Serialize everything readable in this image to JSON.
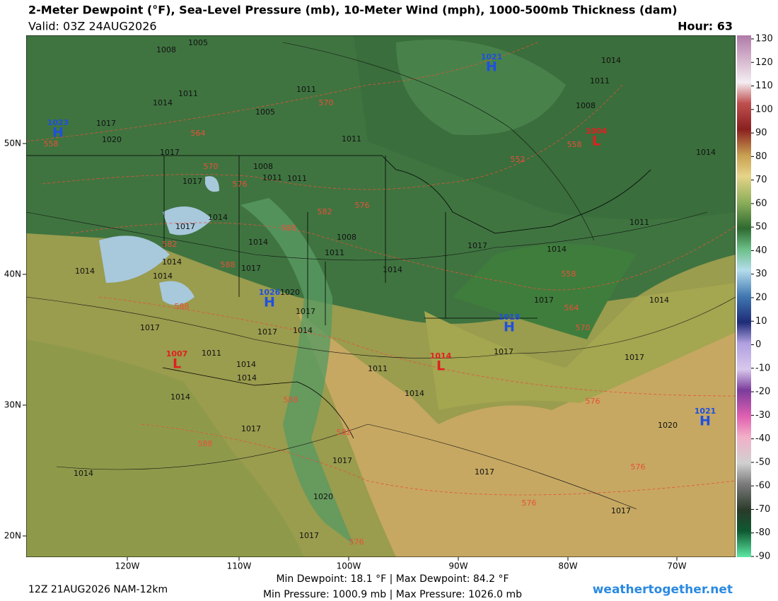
{
  "header": {
    "title": "2-Meter Dewpoint (°F), Sea-Level Pressure (mb), 10-Meter Wind (mph), 1000-500mb Thickness (dam)",
    "valid": "Valid: 03Z 24AUG2026",
    "hour": "Hour: 63"
  },
  "colorbar": {
    "ticks": [
      130,
      120,
      110,
      100,
      90,
      80,
      70,
      60,
      50,
      40,
      30,
      20,
      10,
      0,
      -10,
      -20,
      -30,
      -40,
      -50,
      -60,
      -70,
      -80,
      -90
    ]
  },
  "axes": {
    "lat_labels": [
      "50N",
      "40N",
      "30N",
      "20N"
    ],
    "lon_labels": [
      "120W",
      "110W",
      "100W",
      "90W",
      "80W",
      "70W"
    ]
  },
  "isobar_labels": [
    1008,
    1005,
    1011,
    1014,
    1017,
    1020,
    1017,
    1005,
    1011,
    1011,
    1008,
    1011,
    1011,
    1017,
    1017,
    1014,
    1008,
    1014,
    1011,
    1014,
    1017,
    1014,
    1011,
    1014,
    1011,
    1008,
    1014,
    1014,
    1017,
    1014,
    1014,
    1014,
    1017,
    1020,
    1017,
    1017,
    1017,
    1014,
    1011,
    1014,
    1014,
    1011,
    1014,
    1014,
    1017,
    1017,
    1020,
    1017,
    1017,
    1017,
    1017,
    1017,
    1020,
    1014
  ],
  "thickness_labels": [
    558,
    564,
    570,
    570,
    576,
    582,
    576,
    588,
    582,
    588,
    588,
    552,
    558,
    558,
    564,
    570,
    576,
    576,
    576,
    588,
    582,
    576,
    588
  ],
  "pressure_centers": [
    {
      "symbol": "H",
      "pressure": 1021
    },
    {
      "symbol": "H",
      "pressure": 1023
    },
    {
      "symbol": "L",
      "pressure": 1004
    },
    {
      "symbol": "H",
      "pressure": 1026
    },
    {
      "symbol": "H",
      "pressure": 1018
    },
    {
      "symbol": "L",
      "pressure": 1007
    },
    {
      "symbol": "L",
      "pressure": 1014
    },
    {
      "symbol": "H",
      "pressure": 1021
    }
  ],
  "footer": {
    "run": "12Z 21AUG2026 NAM-12km",
    "dewpoint_range": "Min Dewpoint:  18.1 °F | Max Dewpoint:  84.2 °F",
    "pressure_range": "Min Pressure: 1000.9 mb | Max Pressure: 1026.0 mb",
    "site": "weathertogether.net"
  }
}
